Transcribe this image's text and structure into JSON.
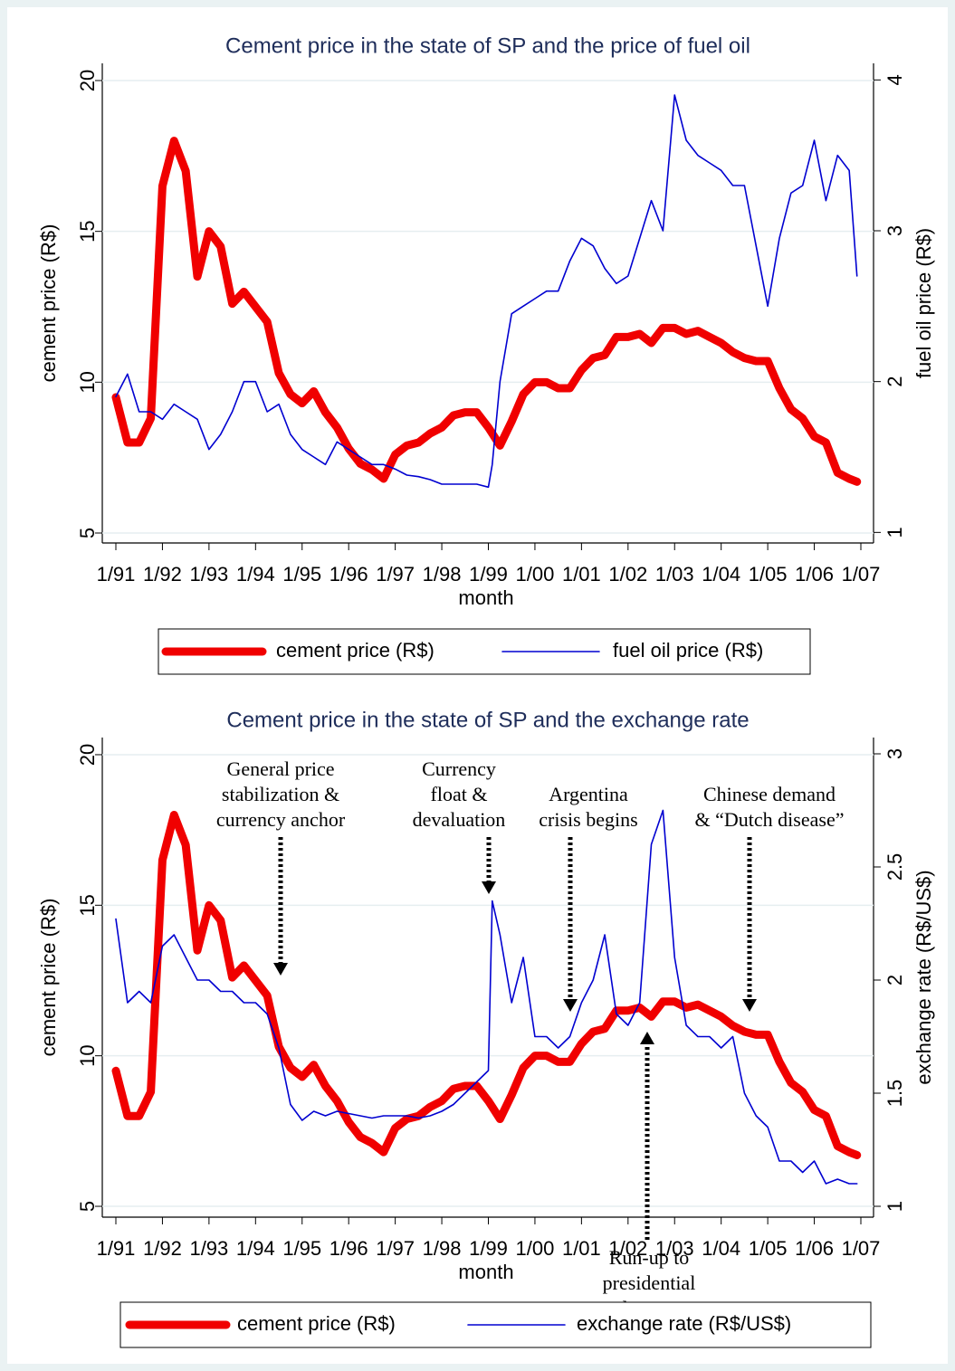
{
  "chart_data": [
    {
      "type": "line",
      "title": "Cement price in the state of SP and the price of fuel oil",
      "xlabel": "month",
      "ylabel": "cement price (R$)",
      "y2label": "fuel oil price (R$)",
      "x": [
        "1/91",
        "4/91",
        "7/91",
        "10/91",
        "1/92",
        "4/92",
        "7/92",
        "10/92",
        "1/93",
        "4/93",
        "7/93",
        "10/93",
        "1/94",
        "4/94",
        "7/94",
        "10/94",
        "1/95",
        "4/95",
        "7/95",
        "10/95",
        "1/96",
        "4/96",
        "7/96",
        "10/96",
        "1/97",
        "4/97",
        "7/97",
        "10/97",
        "1/98",
        "4/98",
        "7/98",
        "10/98",
        "1/99",
        "2/99",
        "4/99",
        "7/99",
        "10/99",
        "1/00",
        "4/00",
        "7/00",
        "10/00",
        "1/01",
        "4/01",
        "7/01",
        "10/01",
        "1/02",
        "4/02",
        "7/02",
        "10/02",
        "1/03",
        "4/03",
        "7/03",
        "10/03",
        "1/04",
        "4/04",
        "7/04",
        "10/04",
        "1/05",
        "4/05",
        "7/05",
        "10/05",
        "1/06",
        "4/06",
        "7/06",
        "10/06",
        "12/06"
      ],
      "xticks": [
        "1/91",
        "1/92",
        "1/93",
        "1/94",
        "1/95",
        "1/96",
        "1/97",
        "1/98",
        "1/99",
        "1/00",
        "1/01",
        "1/02",
        "1/03",
        "1/04",
        "1/05",
        "1/06",
        "1/07"
      ],
      "ylim": [
        4.67,
        20.57
      ],
      "yticks": [
        5,
        10,
        15,
        20
      ],
      "y2lim": [
        0.93,
        4.11
      ],
      "y2ticks": [
        1,
        2,
        3,
        4
      ],
      "grid": true,
      "series": [
        {
          "name": "cement price (R$)",
          "color": "#f00000",
          "values": [
            9.5,
            8.0,
            8.0,
            8.8,
            16.5,
            18.0,
            17.0,
            13.5,
            15.0,
            14.5,
            12.6,
            13.0,
            12.5,
            12.0,
            10.3,
            9.6,
            9.3,
            9.7,
            9.0,
            8.5,
            7.8,
            7.3,
            7.1,
            6.8,
            7.6,
            7.9,
            8.0,
            8.3,
            8.5,
            8.9,
            9.0,
            9.0,
            8.5,
            8.3,
            7.9,
            8.7,
            9.6,
            10.0,
            10.0,
            9.8,
            9.8,
            10.4,
            10.8,
            10.9,
            11.5,
            11.5,
            11.6,
            11.3,
            11.8,
            11.8,
            11.6,
            11.7,
            11.5,
            11.3,
            11.0,
            10.8,
            10.7,
            10.7,
            9.8,
            9.1,
            8.8,
            8.2,
            8.0,
            7.0,
            6.8,
            6.7
          ]
        },
        {
          "name": "fuel oil price (R$)",
          "color": "#0000d0",
          "axis": "y2",
          "values": [
            1.9,
            2.05,
            1.8,
            1.8,
            1.75,
            1.85,
            1.8,
            1.75,
            1.55,
            1.65,
            1.8,
            2.0,
            2.0,
            1.8,
            1.85,
            1.65,
            1.55,
            1.5,
            1.45,
            1.6,
            1.55,
            1.5,
            1.45,
            1.45,
            1.42,
            1.38,
            1.37,
            1.35,
            1.32,
            1.32,
            1.32,
            1.32,
            1.3,
            1.45,
            2.0,
            2.45,
            2.5,
            2.55,
            2.6,
            2.6,
            2.8,
            2.95,
            2.9,
            2.75,
            2.65,
            2.7,
            2.95,
            3.2,
            3.0,
            3.9,
            3.6,
            3.5,
            3.45,
            3.4,
            3.3,
            3.3,
            2.9,
            2.5,
            2.95,
            3.25,
            3.3,
            3.6,
            3.2,
            3.5,
            3.4,
            2.7
          ]
        }
      ]
    },
    {
      "type": "line",
      "title": "Cement price in the state of SP and the exchange rate",
      "xlabel": "month",
      "ylabel": "cement price (R$)",
      "y2label": "exchange rate (R$/US$)",
      "x": [
        "1/91",
        "4/91",
        "7/91",
        "10/91",
        "1/92",
        "4/92",
        "7/92",
        "10/92",
        "1/93",
        "4/93",
        "7/93",
        "10/93",
        "1/94",
        "4/94",
        "7/94",
        "10/94",
        "1/95",
        "4/95",
        "7/95",
        "10/95",
        "1/96",
        "4/96",
        "7/96",
        "10/96",
        "1/97",
        "4/97",
        "7/97",
        "10/97",
        "1/98",
        "4/98",
        "7/98",
        "10/98",
        "1/99",
        "2/99",
        "4/99",
        "7/99",
        "10/99",
        "1/00",
        "4/00",
        "7/00",
        "10/00",
        "1/01",
        "4/01",
        "7/01",
        "10/01",
        "1/02",
        "4/02",
        "7/02",
        "10/02",
        "1/03",
        "4/03",
        "7/03",
        "10/03",
        "1/04",
        "4/04",
        "7/04",
        "10/04",
        "1/05",
        "4/05",
        "7/05",
        "10/05",
        "1/06",
        "4/06",
        "7/06",
        "10/06",
        "12/06"
      ],
      "xticks": [
        "1/91",
        "1/92",
        "1/93",
        "1/94",
        "1/95",
        "1/96",
        "1/97",
        "1/98",
        "1/99",
        "1/00",
        "1/01",
        "1/02",
        "1/03",
        "1/04",
        "1/05",
        "1/06",
        "1/07"
      ],
      "ylim": [
        4.64,
        20.57
      ],
      "yticks": [
        5,
        10,
        15,
        20
      ],
      "y2lim": [
        0.952,
        3.072
      ],
      "y2ticks": [
        1,
        1.5,
        2,
        2.5,
        3
      ],
      "grid": true,
      "series": [
        {
          "name": "cement price (R$)",
          "color": "#f00000",
          "values": [
            9.5,
            8.0,
            8.0,
            8.8,
            16.5,
            18.0,
            17.0,
            13.5,
            15.0,
            14.5,
            12.6,
            13.0,
            12.5,
            12.0,
            10.3,
            9.6,
            9.3,
            9.7,
            9.0,
            8.5,
            7.8,
            7.3,
            7.1,
            6.8,
            7.6,
            7.9,
            8.0,
            8.3,
            8.5,
            8.9,
            9.0,
            9.0,
            8.5,
            8.3,
            7.9,
            8.7,
            9.6,
            10.0,
            10.0,
            9.8,
            9.8,
            10.4,
            10.8,
            10.9,
            11.5,
            11.5,
            11.6,
            11.3,
            11.8,
            11.8,
            11.6,
            11.7,
            11.5,
            11.3,
            11.0,
            10.8,
            10.7,
            10.7,
            9.8,
            9.1,
            8.8,
            8.2,
            8.0,
            7.0,
            6.8,
            6.7
          ]
        },
        {
          "name": "exchange rate (R$/US$)",
          "color": "#0000d0",
          "axis": "y2",
          "values": [
            2.27,
            1.9,
            1.95,
            1.9,
            2.15,
            2.2,
            2.1,
            2.0,
            2.0,
            1.95,
            1.95,
            1.9,
            1.9,
            1.85,
            1.7,
            1.45,
            1.38,
            1.42,
            1.4,
            1.42,
            1.41,
            1.4,
            1.39,
            1.4,
            1.4,
            1.4,
            1.39,
            1.4,
            1.42,
            1.45,
            1.5,
            1.55,
            1.6,
            2.35,
            2.2,
            1.9,
            2.1,
            1.75,
            1.75,
            1.7,
            1.75,
            1.9,
            2.0,
            2.2,
            1.85,
            1.8,
            1.9,
            2.6,
            2.75,
            2.1,
            1.8,
            1.75,
            1.75,
            1.7,
            1.75,
            1.5,
            1.4,
            1.35,
            1.2,
            1.2,
            1.15,
            1.2,
            1.1,
            1.12,
            1.1,
            1.1
          ]
        }
      ],
      "annotations": [
        {
          "lines": [
            "General price",
            "stabilization &",
            "currency anchor"
          ]
        },
        {
          "lines": [
            "Currency",
            "float &",
            "devaluation"
          ]
        },
        {
          "lines": [
            "Argentina",
            "crisis begins"
          ]
        },
        {
          "lines": [
            "Chinese demand",
            "& “Dutch disease”"
          ]
        },
        {
          "lines": [
            "Run-up to",
            "presidential",
            "elections"
          ]
        }
      ]
    }
  ]
}
